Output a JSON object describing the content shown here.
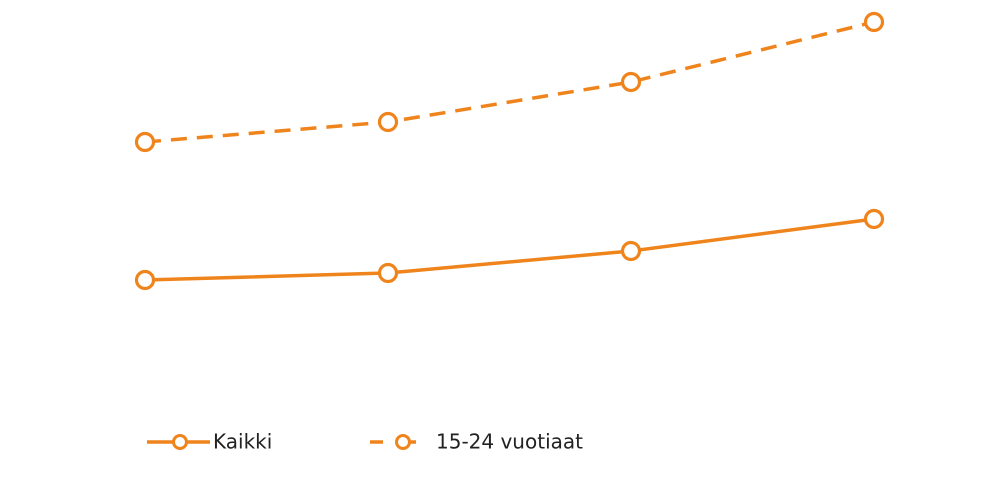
{
  "chart_data": {
    "type": "line",
    "categories": [
      null,
      null,
      null,
      null
    ],
    "series": [
      {
        "name": "Kaikki",
        "color": "#f0841c",
        "dash": false,
        "values": [
          12.0,
          12.7,
          14.9,
          18.1
        ]
      },
      {
        "name": "15-24 vuotiaat",
        "color": "#f0841c",
        "dash": true,
        "values": [
          25.8,
          27.8,
          31.8,
          37.8
        ]
      }
    ],
    "legend": "bottom-left"
  }
}
